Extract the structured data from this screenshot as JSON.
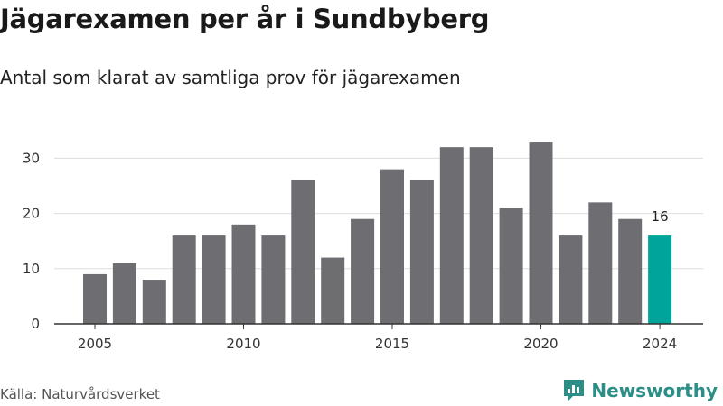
{
  "header": {
    "title": "Jägarexamen per år i Sundbyberg",
    "subtitle": "Antal som klarat av samtliga prov för jägarexamen"
  },
  "footer": {
    "source": "Källa: Naturvårdsverket",
    "brand": "Newsworthy"
  },
  "colors": {
    "bar": "#6e6d72",
    "highlight": "#00a49a",
    "grid": "#dddddd",
    "brand": "#2b8f87"
  },
  "chart_data": {
    "type": "bar",
    "title": "",
    "xlabel": "",
    "ylabel": "",
    "x": [
      2005,
      2006,
      2007,
      2008,
      2009,
      2010,
      2011,
      2012,
      2013,
      2014,
      2015,
      2016,
      2017,
      2018,
      2019,
      2020,
      2021,
      2022,
      2023,
      2024
    ],
    "values": [
      9,
      11,
      8,
      16,
      16,
      18,
      16,
      26,
      12,
      19,
      28,
      26,
      32,
      32,
      21,
      33,
      16,
      22,
      19,
      16
    ],
    "highlight": 2024,
    "data_labels": [
      {
        "x": 2024,
        "text": "16"
      }
    ],
    "ylim": [
      0,
      35
    ],
    "yticks": [
      0,
      10,
      20,
      30
    ],
    "xticks": [
      2005,
      2010,
      2015,
      2020,
      2024
    ],
    "grid": true
  }
}
